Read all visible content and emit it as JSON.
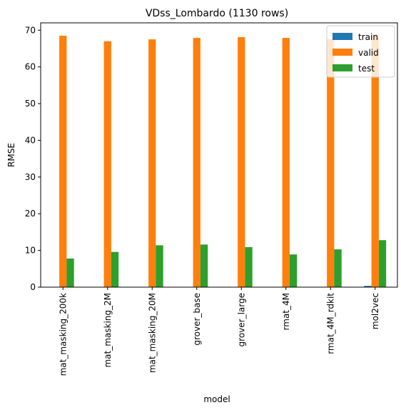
{
  "chart_data": {
    "type": "bar",
    "title": "VDss_Lombardo (1130 rows)",
    "xlabel": "model",
    "ylabel": "RMSE",
    "ylim": [
      0,
      72
    ],
    "yticks": [
      0,
      10,
      20,
      30,
      40,
      50,
      60,
      70
    ],
    "categories": [
      "mat_masking_200k",
      "mat_masking_2M",
      "mat_masking_20M",
      "grover_base",
      "grover_large",
      "rmat_4M",
      "rmat_4M_rdkit",
      "mol2vec"
    ],
    "series": [
      {
        "name": "train",
        "color": "#1f77b4",
        "values": [
          0.02,
          0.02,
          0.02,
          0.02,
          0.02,
          0.02,
          0.02,
          0.35
        ]
      },
      {
        "name": "valid",
        "color": "#ff7f0e",
        "values": [
          68.5,
          67.0,
          67.5,
          67.9,
          68.1,
          67.9,
          67.6,
          68.8
        ]
      },
      {
        "name": "test",
        "color": "#2ca02c",
        "values": [
          7.8,
          9.6,
          11.4,
          11.6,
          10.9,
          8.9,
          10.3,
          12.8
        ]
      }
    ],
    "legend_position": "top-right",
    "grid": false
  }
}
